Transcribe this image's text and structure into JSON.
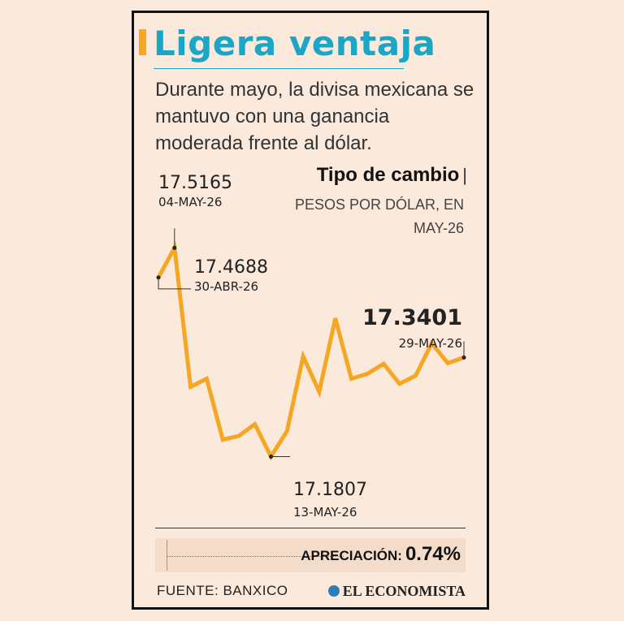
{
  "title": "Ligera ventaja",
  "subtitle": "Durante mayo, la divisa mexicana se mantuvo con una ganancia moderada frente al dólar.",
  "chart_heading": "Tipo de cambio",
  "chart_heading_pipe": "|",
  "chart_subheading": "PESOS POR DÓLAR, EN MAY-26",
  "appreciation_label": "APRECIACIÓN:",
  "appreciation_value": "0.74%",
  "source": "FUENTE: BANXICO",
  "brand": "EL ECONOMISTA",
  "colors": {
    "line": "#f5a623",
    "title": "#1aa6c4",
    "background": "#fbe9dc"
  },
  "chart_data": {
    "type": "line",
    "title": "Tipo de cambio",
    "ylabel": "PESOS POR DÓLAR, EN MAY-26",
    "ylim": [
      17.12,
      17.56
    ],
    "grid": false,
    "series": [
      {
        "values": [
          17.4688,
          17.5165,
          17.293,
          17.306,
          17.208,
          17.214,
          17.233,
          17.1807,
          17.222,
          17.342,
          17.285,
          17.403,
          17.306,
          17.314,
          17.33,
          17.298,
          17.311,
          17.363,
          17.331,
          17.3401
        ]
      }
    ],
    "annotations": [
      {
        "value": "17.5165",
        "date": "04-MAY-26",
        "index": 1
      },
      {
        "value": "17.4688",
        "date": "30-ABR-26",
        "index": 0
      },
      {
        "value": "17.1807",
        "date": "13-MAY-26",
        "index": 7
      },
      {
        "value": "17.3401",
        "date": "29-MAY-26",
        "index": 19
      }
    ]
  }
}
